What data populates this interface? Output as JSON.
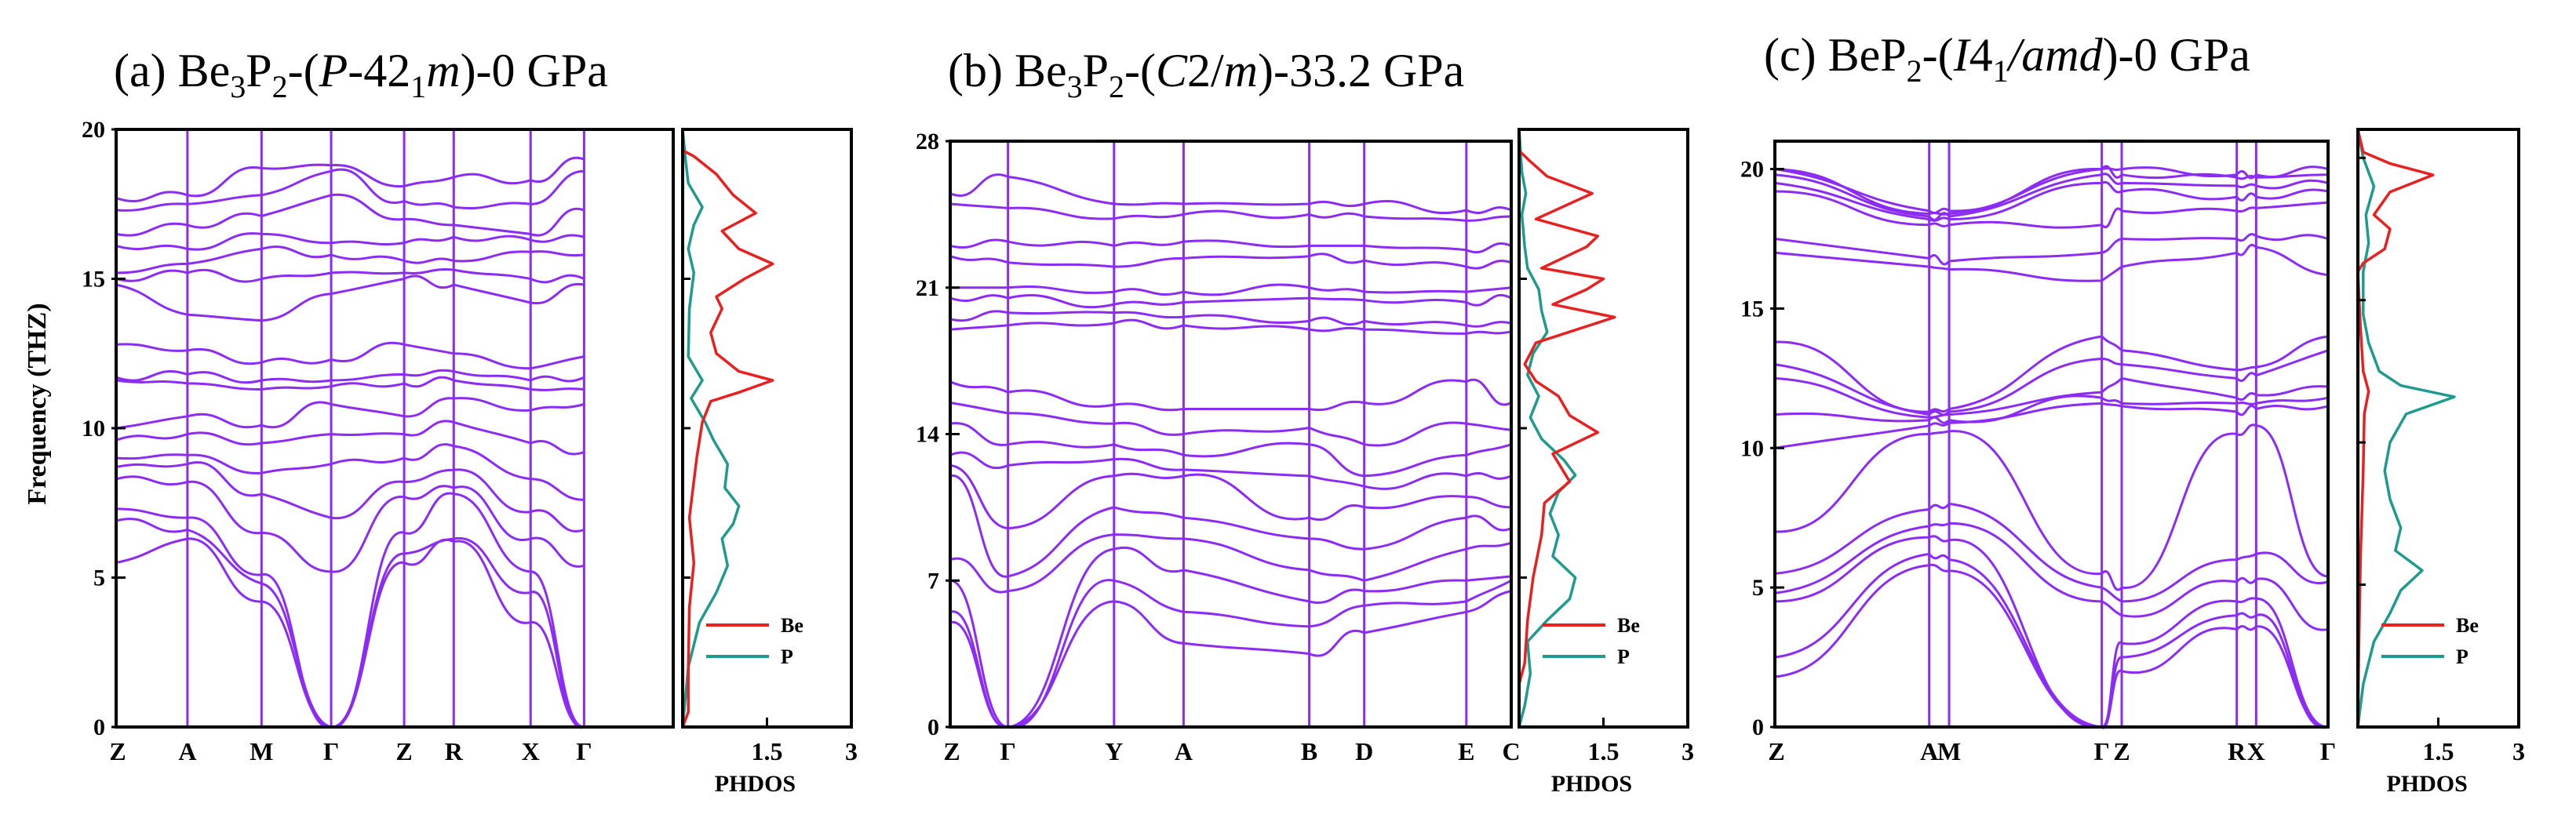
{
  "y_axis_label": "Frequency (THZ)",
  "x_axis_label_dos": "PHDOS",
  "colors": {
    "band": "#8b2bf5",
    "be": "#e8201f",
    "p": "#1f9a8e",
    "axis": "#000000"
  },
  "chart_data": [
    {
      "type": "line",
      "title": {
        "prefix": "(a) Be",
        "sub1": "3",
        "mid1": "P",
        "sub2": "2",
        "mid2": "-(",
        "ital1": "P",
        "mid3": "-42",
        "sub3": "1",
        "ital2": "m",
        "suffix": ")-0 GPa"
      },
      "kpoints": [
        "Z",
        "A",
        "M",
        "Γ",
        "Z",
        "R",
        "X",
        "Γ"
      ],
      "kpos": [
        0,
        0.128,
        0.261,
        0.386,
        0.517,
        0.606,
        0.744,
        0.84
      ],
      "yticks": [
        0,
        5,
        10,
        15,
        20
      ],
      "ylim": [
        0,
        20
      ],
      "dos_xticks": [
        "1.5",
        "3"
      ],
      "dos_xlim": [
        0,
        3
      ],
      "legend": [
        "Be",
        "P"
      ],
      "branches_at_kpoints": [
        [
          5.5,
          6.9,
          7.3,
          8.3,
          8.7,
          9.0,
          9.6,
          10.0,
          11.6,
          11.7,
          12.8,
          14.8,
          15.0,
          15.2,
          16.1,
          16.5,
          17.3,
          17.7
        ],
        [
          6.3,
          6.6,
          7.0,
          8.2,
          8.8,
          9.1,
          9.8,
          10.4,
          11.5,
          11.8,
          12.6,
          13.8,
          15.2,
          15.5,
          16.0,
          16.8,
          17.5,
          17.8
        ],
        [
          4.2,
          4.8,
          5.1,
          6.5,
          7.8,
          8.5,
          9.5,
          10.1,
          11.3,
          11.6,
          12.2,
          13.6,
          15.0,
          16.0,
          16.5,
          17.1,
          17.8,
          18.7
        ],
        [
          0,
          0,
          0,
          5.2,
          7.0,
          8.8,
          9.8,
          10.8,
          11.4,
          11.6,
          12.3,
          14.5,
          15.2,
          15.8,
          16.2,
          17.8,
          18.6,
          18.8
        ],
        [
          5.5,
          5.8,
          6.5,
          7.7,
          8.2,
          9.0,
          9.8,
          10.4,
          11.5,
          11.8,
          12.8,
          15.0,
          15.2,
          15.6,
          16.2,
          17.0,
          17.6,
          18.1
        ],
        [
          6.2,
          6.3,
          7.8,
          8.0,
          8.6,
          9.4,
          10.2,
          11.0,
          11.6,
          11.9,
          12.5,
          14.8,
          15.3,
          15.6,
          16.4,
          16.8,
          17.4,
          18.4
        ],
        [
          3.5,
          4.5,
          5.2,
          6.3,
          7.2,
          8.3,
          9.5,
          10.6,
          11.3,
          11.6,
          12.0,
          14.2,
          15.0,
          15.9,
          16.3,
          16.5,
          17.5,
          18.3
        ],
        [
          0,
          0,
          0,
          5.4,
          6.6,
          7.6,
          9.2,
          10.8,
          11.3,
          11.7,
          12.4,
          14.8,
          15.0,
          15.8,
          16.4,
          17.3,
          18.6,
          19.0
        ]
      ],
      "dos_be": [
        [
          0,
          0
        ],
        [
          0.1,
          0.5
        ],
        [
          0.1,
          2
        ],
        [
          0.12,
          4
        ],
        [
          0.2,
          5.5
        ],
        [
          0.12,
          7
        ],
        [
          0.25,
          9
        ],
        [
          0.35,
          10.2
        ],
        [
          0.5,
          10.9
        ],
        [
          1.0,
          11.2
        ],
        [
          1.6,
          11.6
        ],
        [
          1.0,
          11.9
        ],
        [
          0.6,
          12.5
        ],
        [
          0.5,
          13.2
        ],
        [
          0.7,
          14.0
        ],
        [
          0.6,
          14.4
        ],
        [
          1.1,
          15.0
        ],
        [
          1.6,
          15.5
        ],
        [
          1.0,
          16.0
        ],
        [
          0.7,
          16.6
        ],
        [
          1.3,
          17.2
        ],
        [
          0.9,
          17.8
        ],
        [
          0.6,
          18.5
        ],
        [
          0.2,
          19.1
        ],
        [
          0,
          19.3
        ],
        [
          0,
          20
        ]
      ],
      "dos_p": [
        [
          0,
          0
        ],
        [
          0.1,
          2
        ],
        [
          0.3,
          3.5
        ],
        [
          0.6,
          4.5
        ],
        [
          0.8,
          5.4
        ],
        [
          0.7,
          6.3
        ],
        [
          0.9,
          6.8
        ],
        [
          1.0,
          7.4
        ],
        [
          0.75,
          8.0
        ],
        [
          0.8,
          8.8
        ],
        [
          0.55,
          9.6
        ],
        [
          0.4,
          10.2
        ],
        [
          0.15,
          11.0
        ],
        [
          0.35,
          11.6
        ],
        [
          0.1,
          12.4
        ],
        [
          0.12,
          14
        ],
        [
          0.2,
          15.2
        ],
        [
          0.1,
          16
        ],
        [
          0.2,
          16.8
        ],
        [
          0.35,
          17.4
        ],
        [
          0.1,
          18.2
        ],
        [
          0.05,
          19
        ],
        [
          0,
          20
        ]
      ]
    },
    {
      "type": "line",
      "title": {
        "prefix": "(b) Be",
        "sub1": "3",
        "mid1": "P",
        "sub2": "2",
        "mid2": "-(",
        "ital1": "C",
        "mid3": "2/",
        "sub3": "",
        "ital2": "m",
        "suffix": ")-33.2 GPa"
      },
      "kpoints": [
        "Z",
        "Γ",
        "Y",
        "A",
        "B",
        "D",
        "E",
        "C"
      ],
      "kpos": [
        0,
        0.103,
        0.292,
        0.416,
        0.64,
        0.738,
        0.92,
        1.0
      ],
      "yticks": [
        0,
        7,
        14,
        21,
        28
      ],
      "ylim": [
        0,
        28
      ],
      "dos_xticks": [
        "1.5",
        "3"
      ],
      "dos_xlim": [
        0,
        3
      ],
      "legend": [
        "Be",
        "P"
      ],
      "branches_at_kpoints": [
        [
          5.0,
          5.5,
          7.0,
          8.0,
          12.0,
          12.5,
          13.0,
          14.5,
          15.5,
          16.5,
          19.0,
          19.5,
          20.5,
          21.0,
          22.5,
          23.0,
          25.0,
          25.5
        ],
        [
          0,
          0,
          0,
          6.5,
          7.2,
          9.5,
          12.5,
          13.5,
          15.0,
          16.0,
          19.2,
          19.8,
          20.5,
          21.0,
          22.2,
          23.2,
          24.8,
          26.3
        ],
        [
          6.0,
          7.0,
          8.5,
          9.2,
          10.5,
          12.0,
          12.8,
          13.5,
          14.5,
          15.4,
          19.3,
          19.8,
          20.2,
          20.8,
          22.0,
          23.0,
          24.3,
          25.0
        ],
        [
          4.0,
          5.5,
          7.5,
          9.0,
          10.0,
          12.0,
          12.3,
          13.0,
          14.0,
          15.2,
          19.2,
          19.6,
          20.3,
          20.8,
          22.4,
          23.2,
          24.5,
          25.0
        ],
        [
          3.5,
          4.8,
          6.0,
          7.5,
          9.0,
          10.0,
          12.0,
          13.5,
          14.3,
          15.2,
          19.0,
          19.4,
          20.5,
          21.0,
          22.5,
          23.0,
          24.5,
          25.0
        ],
        [
          4.5,
          5.8,
          6.5,
          7.0,
          8.5,
          10.5,
          11.5,
          12.0,
          13.5,
          15.5,
          19.0,
          19.4,
          20.4,
          20.8,
          22.3,
          23.0,
          24.4,
          25.0
        ],
        [
          5.5,
          6.0,
          7.0,
          8.5,
          10.0,
          11.0,
          12.0,
          13.0,
          14.5,
          16.5,
          18.8,
          19.2,
          20.3,
          20.8,
          22.0,
          22.8,
          24.2,
          24.7
        ],
        [
          6.5,
          7.0,
          7.2,
          8.8,
          9.5,
          10.5,
          12.0,
          13.5,
          14.2,
          15.5,
          18.9,
          19.3,
          20.5,
          21.0,
          22.2,
          23.0,
          24.4,
          24.7
        ]
      ],
      "dos_be": [
        [
          0,
          0
        ],
        [
          0,
          2
        ],
        [
          0.1,
          3
        ],
        [
          0.15,
          5
        ],
        [
          0.25,
          7
        ],
        [
          0.4,
          9
        ],
        [
          0.45,
          10.5
        ],
        [
          0.9,
          11.5
        ],
        [
          0.6,
          12.8
        ],
        [
          1.4,
          13.8
        ],
        [
          0.9,
          14.6
        ],
        [
          0.7,
          15.5
        ],
        [
          0.3,
          16.2
        ],
        [
          0.1,
          17
        ],
        [
          0.3,
          18
        ],
        [
          1.7,
          19.2
        ],
        [
          0.6,
          19.8
        ],
        [
          1.2,
          20.5
        ],
        [
          1.5,
          21.0
        ],
        [
          0.4,
          21.5
        ],
        [
          1.2,
          22.5
        ],
        [
          1.4,
          23.0
        ],
        [
          0.3,
          23.8
        ],
        [
          1.3,
          25.0
        ],
        [
          0.5,
          25.8
        ],
        [
          0.2,
          26.5
        ],
        [
          0,
          27
        ],
        [
          0,
          28
        ]
      ],
      "dos_p": [
        [
          0,
          0
        ],
        [
          0.1,
          1
        ],
        [
          0.2,
          2.5
        ],
        [
          0.15,
          4
        ],
        [
          0.5,
          5
        ],
        [
          0.9,
          6
        ],
        [
          1.0,
          7
        ],
        [
          0.6,
          8
        ],
        [
          0.7,
          9
        ],
        [
          0.55,
          10
        ],
        [
          0.7,
          11
        ],
        [
          1.0,
          11.8
        ],
        [
          0.8,
          12.5
        ],
        [
          0.4,
          13.5
        ],
        [
          0.2,
          14.5
        ],
        [
          0.35,
          15.5
        ],
        [
          0.15,
          16.5
        ],
        [
          0.25,
          17.5
        ],
        [
          0.5,
          18.5
        ],
        [
          0.4,
          19.5
        ],
        [
          0.35,
          20.5
        ],
        [
          0.15,
          21.5
        ],
        [
          0.1,
          22.5
        ],
        [
          0.05,
          24
        ],
        [
          0.12,
          25
        ],
        [
          0.05,
          26
        ],
        [
          0,
          28
        ]
      ]
    },
    {
      "type": "line",
      "title": {
        "prefix": "(c) BeP",
        "sub1": "2",
        "mid1": "",
        "sub2": "",
        "mid2": "-(",
        "ital1": "I",
        "mid3": "4",
        "sub3": "1",
        "ital2": "/amd",
        "suffix": ")-0 GPa"
      },
      "kpoints": [
        "Z",
        "A",
        "M",
        "Γ",
        "Z",
        "R",
        "X",
        "Γ"
      ],
      "kpos": [
        0,
        0.279,
        0.315,
        0.591,
        0.627,
        0.835,
        0.87,
        1.0
      ],
      "yticks": [
        0,
        5,
        10,
        15,
        20
      ],
      "ylim": [
        0,
        21
      ],
      "dos_xticks": [
        "1.5",
        "3"
      ],
      "dos_xlim": [
        0,
        3
      ],
      "legend": [
        "Be",
        "P"
      ],
      "branches_at_kpoints": [
        [
          1.8,
          2.5,
          4.5,
          4.8,
          5.5,
          7.0,
          10.0,
          11.2,
          12.5,
          13.0,
          13.8,
          17.0,
          17.5,
          19.2,
          19.5,
          19.8,
          20.0,
          20.0
        ],
        [
          5.8,
          6.2,
          6.8,
          7.2,
          7.8,
          10.5,
          10.8,
          11.0,
          11.1,
          11.2,
          11.3,
          16.5,
          16.8,
          18.0,
          18.2,
          18.3,
          18.4,
          18.5
        ],
        [
          5.6,
          6.0,
          6.7,
          7.3,
          8.0,
          10.6,
          10.9,
          11.0,
          11.2,
          11.3,
          11.4,
          16.4,
          16.7,
          18.0,
          18.2,
          18.3,
          18.4,
          18.5
        ],
        [
          0,
          0,
          0,
          4.5,
          5.0,
          5.5,
          11.6,
          11.8,
          12.0,
          13.2,
          14.0,
          16.0,
          17.0,
          18.0,
          19.5,
          19.8,
          20.0,
          20.0
        ],
        [
          2.0,
          2.5,
          3.0,
          4.0,
          4.5,
          5.0,
          11.5,
          11.6,
          12.5,
          13.0,
          13.5,
          16.5,
          17.5,
          18.5,
          19.2,
          19.5,
          19.8,
          20.0
        ],
        [
          3.5,
          4.0,
          4.5,
          5.2,
          6.0,
          10.5,
          11.3,
          11.6,
          11.8,
          12.5,
          12.8,
          17.0,
          17.5,
          18.5,
          19.0,
          19.4,
          19.7,
          19.8
        ],
        [
          3.6,
          4.0,
          4.6,
          5.3,
          6.2,
          10.8,
          11.4,
          11.6,
          11.9,
          12.6,
          12.9,
          17.2,
          17.6,
          18.6,
          19.0,
          19.4,
          19.7,
          19.8
        ],
        [
          0,
          0,
          0,
          3.5,
          5.2,
          5.4,
          11.5,
          11.8,
          12.2,
          13.5,
          14.0,
          16.2,
          17.5,
          18.8,
          19.2,
          19.5,
          19.8,
          20.0
        ]
      ],
      "dos_be": [
        [
          0,
          0
        ],
        [
          0.02,
          3
        ],
        [
          0.05,
          6
        ],
        [
          0.1,
          9
        ],
        [
          0.12,
          11
        ],
        [
          0.2,
          11.8
        ],
        [
          0.1,
          12.5
        ],
        [
          0.05,
          14
        ],
        [
          0,
          16
        ],
        [
          0.1,
          16.3
        ],
        [
          0.5,
          16.8
        ],
        [
          0.6,
          17.5
        ],
        [
          0.3,
          18.0
        ],
        [
          0.6,
          18.8
        ],
        [
          1.4,
          19.4
        ],
        [
          0.6,
          19.8
        ],
        [
          0.1,
          20.2
        ],
        [
          0,
          21
        ]
      ],
      "dos_p": [
        [
          0,
          0
        ],
        [
          0.1,
          1.5
        ],
        [
          0.3,
          3
        ],
        [
          0.6,
          4
        ],
        [
          0.8,
          4.8
        ],
        [
          1.2,
          5.5
        ],
        [
          0.7,
          6.2
        ],
        [
          0.8,
          7
        ],
        [
          0.6,
          8
        ],
        [
          0.5,
          9
        ],
        [
          0.6,
          10
        ],
        [
          0.9,
          11
        ],
        [
          1.8,
          11.6
        ],
        [
          0.8,
          12.0
        ],
        [
          0.4,
          12.5
        ],
        [
          0.2,
          13.5
        ],
        [
          0.1,
          14.5
        ],
        [
          0.1,
          16
        ],
        [
          0.2,
          17
        ],
        [
          0.15,
          18
        ],
        [
          0.3,
          19
        ],
        [
          0.1,
          20
        ],
        [
          0,
          21
        ]
      ]
    }
  ]
}
